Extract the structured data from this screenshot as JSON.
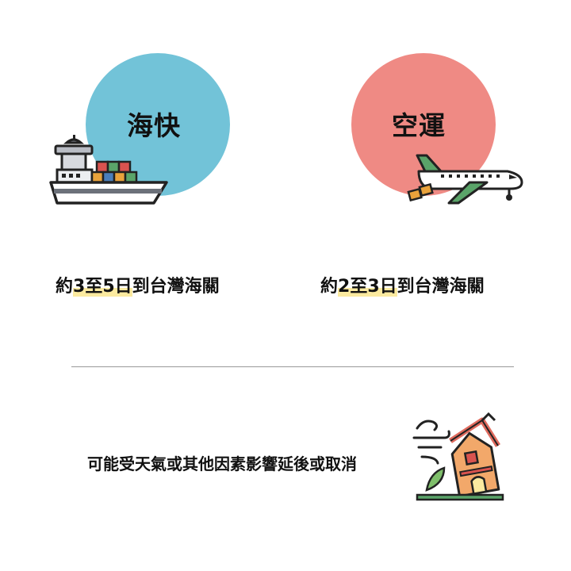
{
  "sea": {
    "label": "海快",
    "eta_prefix": "約",
    "eta_highlight": "3至5日",
    "eta_suffix": "到台灣海關",
    "color": "#72c3d8",
    "icon": "cargo-ship-icon"
  },
  "air": {
    "label": "空運",
    "eta_prefix": "約",
    "eta_highlight": "2至3日",
    "eta_suffix": "到台灣海關",
    "color": "#ef8a84",
    "icon": "airplane-icon"
  },
  "notice": {
    "text": "可能受天氣或其他因素影響延後或取消",
    "icon": "storm-house-icon"
  },
  "colors": {
    "highlight": "#fbeaa0",
    "divider": "#999999"
  }
}
